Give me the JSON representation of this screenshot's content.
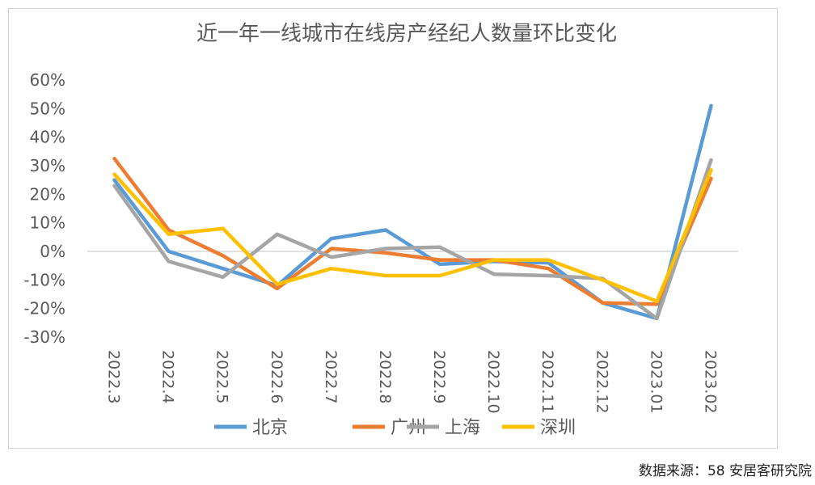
{
  "chart_data": {
    "type": "line",
    "title": "近一年一线城市在线房产经纪人数量环比变化",
    "categories": [
      "2022.3",
      "2022.4",
      "2022.5",
      "2022.6",
      "2022.7",
      "2022.8",
      "2022.9",
      "2022.10",
      "2022.11",
      "2022.12",
      "2023.01",
      "2023.02"
    ],
    "ylim": [
      -30,
      60
    ],
    "yticks": [
      60,
      50,
      40,
      30,
      20,
      10,
      0,
      -10,
      -20,
      -30
    ],
    "ytick_labels": [
      "60%",
      "50%",
      "40%",
      "30%",
      "20%",
      "10%",
      "0%",
      "-10%",
      "-20%",
      "-30%"
    ],
    "xlabel": "",
    "ylabel": "",
    "grid": false,
    "legend_position": "bottom",
    "series": [
      {
        "name": "北京",
        "color": "#5B9BD5",
        "values": [
          25,
          0,
          -6,
          -12,
          4.5,
          7.5,
          -4.5,
          -3.5,
          -4,
          -18,
          -23.5,
          51
        ]
      },
      {
        "name": "广州",
        "color": "#ED7D31",
        "values": [
          32.5,
          7.5,
          -1.5,
          -13,
          1,
          -0.5,
          -3,
          -3,
          -6,
          -18,
          -18.5,
          25.5
        ]
      },
      {
        "name": "上海",
        "color": "#A5A5A5",
        "values": [
          23,
          -3.5,
          -9,
          6,
          -2,
          1,
          1.5,
          -8,
          -8.5,
          -9.5,
          -23.5,
          32
        ]
      },
      {
        "name": "深圳",
        "color": "#FFC000",
        "values": [
          27,
          6,
          8,
          -11.5,
          -6,
          -8.5,
          -8.5,
          -3,
          -3,
          -10,
          -17.5,
          28.5
        ]
      }
    ]
  },
  "footer": {
    "source": "数据来源：58 安居客研究院"
  }
}
